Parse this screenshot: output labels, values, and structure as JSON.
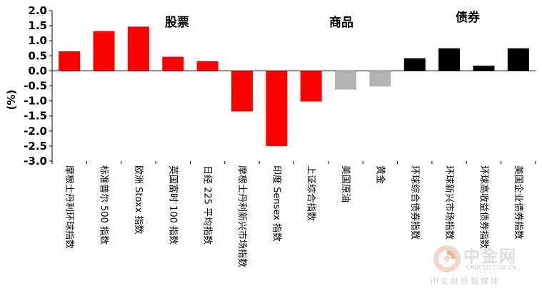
{
  "chart_data": {
    "type": "bar",
    "ylabel": "(%)",
    "ylim": [
      -3.0,
      2.0
    ],
    "yticks": [
      "2.0",
      "1.5",
      "1.0",
      "0.5",
      "0.0",
      "-0.5",
      "-1.0",
      "-1.5",
      "-2.0",
      "-2.5",
      "-3.0"
    ],
    "grid": false,
    "sections": [
      {
        "label": "股票",
        "colors": "#ff0000"
      },
      {
        "label": "商品",
        "colors": "#b3b3b3"
      },
      {
        "label": "债券",
        "colors": "#000000"
      }
    ],
    "categories": [
      "摩根士丹利环球指数",
      "标准普尔 500 指数",
      "欧洲 Stoxx 指数",
      "英国富时 100 指数",
      "日经 225 平均指数",
      "摩根士丹利新兴市场指数",
      "印度 Sensex 指数",
      "上证综合指数",
      "美国原油",
      "黄金",
      "环球综合债券指数",
      "环球新兴市场指数",
      "环球高收益债券指数",
      "美国企业债券指数"
    ],
    "values": [
      0.65,
      1.32,
      1.47,
      0.47,
      0.32,
      -1.35,
      -2.5,
      -1.02,
      -0.62,
      -0.52,
      0.42,
      0.75,
      0.17,
      0.75
    ],
    "bar_colors": [
      "#ff0000",
      "#ff0000",
      "#ff0000",
      "#ff0000",
      "#ff0000",
      "#ff0000",
      "#ff0000",
      "#ff0000",
      "#b3b3b3",
      "#b3b3b3",
      "#000000",
      "#000000",
      "#000000",
      "#000000"
    ]
  },
  "watermark": {
    "brand": "中金网",
    "url": "CNGOLD.COM.CN",
    "tagline": "中文财经新媒体"
  }
}
